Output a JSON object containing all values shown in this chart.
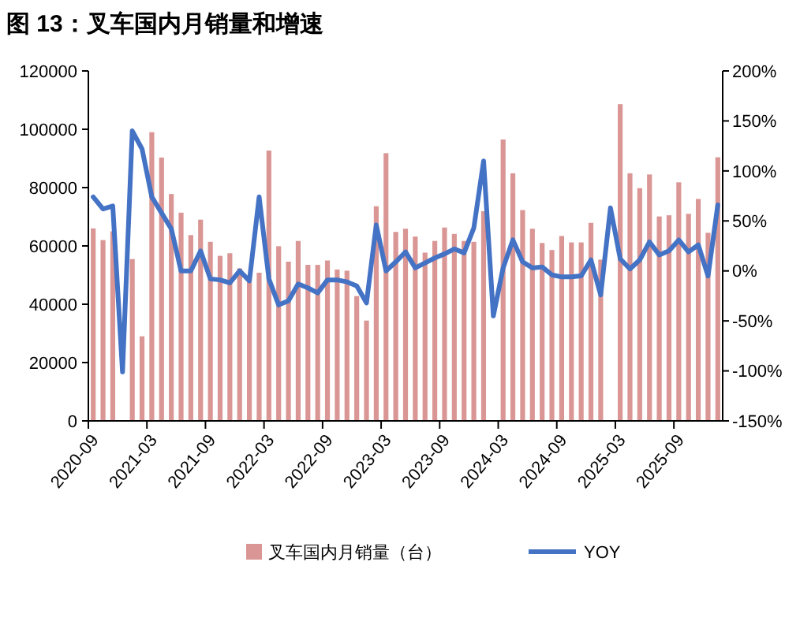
{
  "chart_data": {
    "type": "bar",
    "title": "图 13：叉车国内月销量和增速",
    "categories": [
      "2020-09",
      null,
      null,
      null,
      null,
      null,
      "2021-03",
      null,
      null,
      null,
      null,
      null,
      "2021-09",
      null,
      null,
      null,
      null,
      null,
      "2022-03",
      null,
      null,
      null,
      null,
      null,
      "2022-09",
      null,
      null,
      null,
      null,
      null,
      "2023-03",
      null,
      null,
      null,
      null,
      null,
      "2023-09",
      null,
      null,
      null,
      null,
      null,
      "2024-03",
      null,
      null,
      null,
      null,
      null,
      "2024-09",
      null,
      null,
      null,
      null,
      null,
      "2025-03",
      null,
      null,
      null,
      null,
      null,
      "2025-09",
      null,
      null,
      null,
      null
    ],
    "series": [
      {
        "name": "叉车国内月销量（台）",
        "color": "#d99694",
        "values": [
          66000,
          62000,
          65000,
          null,
          55500,
          29000,
          99000,
          90300,
          77800,
          71400,
          63700,
          69000,
          61400,
          56600,
          57500,
          52300,
          47700,
          50800,
          92700,
          59900,
          54600,
          61700,
          53500,
          53500,
          55000,
          51900,
          51500,
          42800,
          34400,
          73600,
          91800,
          64800,
          65900,
          63200,
          57700,
          61700,
          66300,
          64100,
          61700,
          61400,
          71900,
          null,
          96500,
          84900,
          72300,
          65900,
          61000,
          58600,
          63400,
          61200,
          61200,
          67900,
          55300,
          null,
          108600,
          84900,
          79800,
          84500,
          70100,
          70500,
          81800,
          71000,
          76100,
          64500,
          90400
        ]
      },
      {
        "name": "YOY",
        "type": "line",
        "axis": "y2",
        "color": "#4472c4",
        "values": [
          74,
          62,
          65,
          -101,
          140,
          122,
          74,
          58,
          42,
          0,
          0,
          20,
          -8,
          -9,
          -12,
          0,
          -10,
          74,
          -8,
          -34,
          -30,
          -13,
          -17,
          -22,
          -9,
          -9,
          -11,
          -15,
          -32,
          46,
          0,
          9,
          19,
          3,
          8,
          13,
          17,
          22,
          18,
          43,
          110,
          -45,
          3,
          31,
          9,
          3,
          4,
          -4,
          -6,
          -6,
          -5,
          11,
          -24,
          63,
          12,
          2,
          11,
          29,
          16,
          20,
          31,
          19,
          26,
          -5,
          66
        ]
      }
    ],
    "ylim": [
      0,
      120000
    ],
    "yticks": [
      0,
      20000,
      40000,
      60000,
      80000,
      100000,
      120000
    ],
    "y2lim": [
      -150,
      200
    ],
    "y2ticks": [
      {
        "value": -150,
        "label": "-150%"
      },
      {
        "value": -100,
        "label": "-100%"
      },
      {
        "value": -50,
        "label": "-50%"
      },
      {
        "value": 0,
        "label": "0%"
      },
      {
        "value": 50,
        "label": "50%"
      },
      {
        "value": 100,
        "label": "100%"
      },
      {
        "value": 150,
        "label": "150%"
      },
      {
        "value": 200,
        "label": "200%"
      }
    ],
    "legend": "bottom"
  }
}
